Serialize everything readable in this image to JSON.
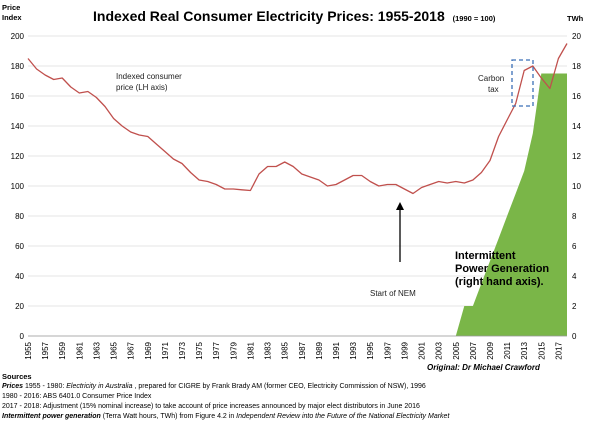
{
  "chart_data": {
    "type": "line",
    "title": "Indexed Real Consumer Electricity Prices: 1955-2018",
    "title_suffix": "(1990 = 100)",
    "ylabel_left": [
      "Price",
      "Index"
    ],
    "ylabel_right": "TWh",
    "ylim_left": [
      0,
      200
    ],
    "yticks_left": [
      "0",
      "20",
      "40",
      "60",
      "80",
      "100",
      "120",
      "140",
      "160",
      "180",
      "200"
    ],
    "ylim_right": [
      0,
      20
    ],
    "yticks_right": [
      "0",
      "2",
      "4",
      "6",
      "8",
      "10",
      "12",
      "14",
      "16",
      "18",
      "20"
    ],
    "xlim": [
      1955,
      2018
    ],
    "xticks": [
      "1955",
      "1957",
      "1959",
      "1961",
      "1963",
      "1965",
      "1967",
      "1969",
      "1971",
      "1973",
      "1975",
      "1977",
      "1979",
      "1981",
      "1983",
      "1985",
      "1987",
      "1989",
      "1991",
      "1993",
      "1995",
      "1997",
      "1999",
      "2001",
      "2003",
      "2005",
      "2007",
      "2009",
      "2011",
      "2013",
      "2015",
      "2017"
    ],
    "grid": "horizontal",
    "series": [
      {
        "axis": "left",
        "color": "#c0504d",
        "style": "line",
        "x": [
          1955,
          1956,
          1957,
          1958,
          1959,
          1960,
          1961,
          1962,
          1963,
          1964,
          1965,
          1966,
          1967,
          1968,
          1969,
          1970,
          1971,
          1972,
          1973,
          1974,
          1975,
          1976,
          1977,
          1978,
          1979,
          1980,
          1981,
          1982,
          1983,
          1984,
          1985,
          1986,
          1987,
          1988,
          1989,
          1990,
          1991,
          1992,
          1993,
          1994,
          1995,
          1996,
          1997,
          1998,
          1999,
          2000,
          2001,
          2002,
          2003,
          2004,
          2005,
          2006,
          2007,
          2008,
          2009,
          2010,
          2011,
          2012,
          2013,
          2014,
          2015,
          2016,
          2017,
          2018
        ],
        "values": [
          185,
          178,
          174,
          171,
          172,
          166,
          162,
          163,
          159,
          153,
          145,
          140,
          136,
          134,
          133,
          128,
          123,
          118,
          115,
          109,
          104,
          103,
          101,
          98,
          98,
          97.5,
          97,
          108,
          113,
          113,
          116,
          113,
          108,
          106,
          104,
          100,
          101,
          104,
          107,
          107,
          103,
          100,
          101,
          101,
          98,
          95,
          99,
          101,
          103,
          102,
          103,
          102,
          104,
          109,
          117,
          133,
          144,
          155,
          177,
          180,
          172,
          165,
          185,
          195
        ]
      },
      {
        "axis": "right",
        "color": "#7ab648",
        "style": "area",
        "x": [
          1955,
          2005,
          2006,
          2007,
          2008,
          2009,
          2010,
          2011,
          2012,
          2013,
          2014,
          2015,
          2016,
          2017,
          2018
        ],
        "values": [
          0,
          0,
          2,
          2,
          3.5,
          5,
          6.5,
          8,
          9.5,
          11,
          13.5,
          17.5,
          17.5,
          17.5,
          17.5
        ]
      }
    ],
    "annotations": {
      "price_line": [
        "Indexed consumer",
        "price (LH axis)"
      ],
      "carbon_tax": [
        "Carbon",
        "tax"
      ],
      "nem": "Start of NEM",
      "intermittent": [
        "Intermittent",
        "Power Generation",
        "(right hand axis)."
      ]
    },
    "credit": "Original:  Dr Michael Crawford"
  },
  "sources": {
    "heading": "Sources",
    "prices_label": "Prices",
    "prices_text": " 1955 - 1980: ",
    "prices_title": "Electricity in Australia",
    "prices_rest": " , prepared for CIGRE by Frank Brady AM (former CEO, Electricity Commission of NSW), 1996",
    "line2": "1980 - 2016: ABS 6401.0 Consumer Price Index",
    "line3": "2017 - 2018: Adjustment (15% nominal increase) to take account of price increases announced by major elect distributors in June 2016",
    "ipg_label": "Intermittent power generation",
    "ipg_text": "  (Terra Watt hours, TWh) from Figure 4.2 in ",
    "ipg_title": "Independent Review into the Future of the National Electricity Market"
  }
}
